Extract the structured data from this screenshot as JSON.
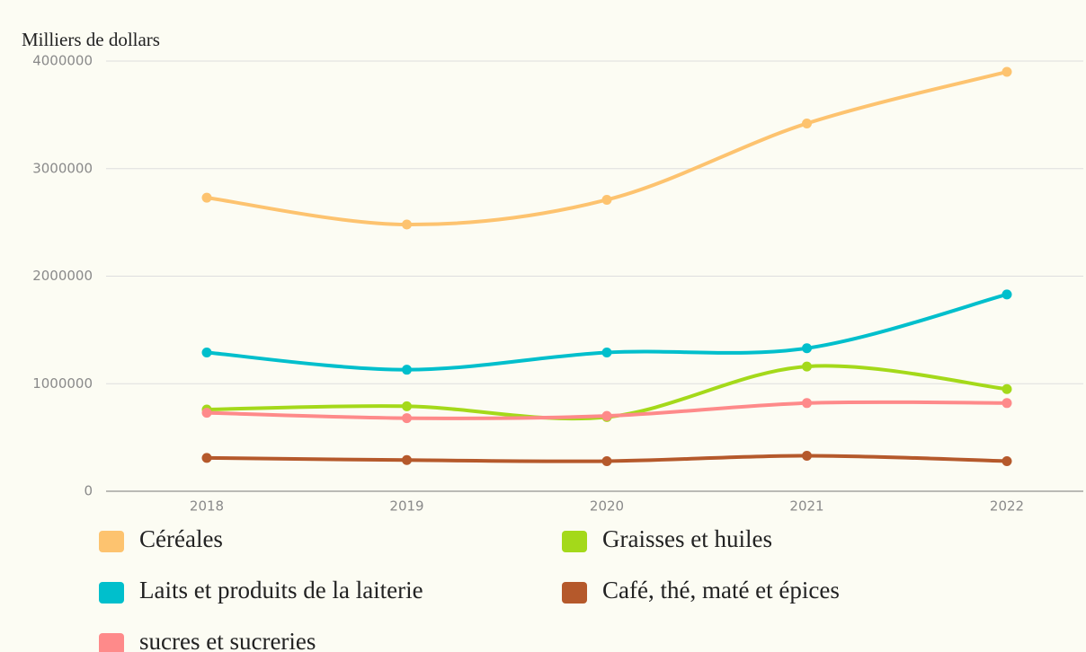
{
  "chart_data": {
    "type": "line",
    "y_axis_label": "Milliers de dollars",
    "categories": [
      "2018",
      "2019",
      "2020",
      "2021",
      "2022"
    ],
    "series": [
      {
        "name": "Céréales",
        "color": "#fdc36f",
        "values": [
          2730000,
          2480000,
          2710000,
          3420000,
          3900000
        ]
      },
      {
        "name": "Graisses et huiles",
        "color": "#a4d91a",
        "values": [
          760000,
          790000,
          690000,
          1160000,
          950000
        ]
      },
      {
        "name": "Laits et produits de la laiterie",
        "color": "#00bfcc",
        "values": [
          1290000,
          1130000,
          1290000,
          1330000,
          1830000
        ]
      },
      {
        "name": "Café, thé, maté et épices",
        "color": "#b5592b",
        "values": [
          310000,
          290000,
          280000,
          330000,
          280000
        ]
      },
      {
        "name": "sucres et sucreries",
        "color": "#fe8a8a",
        "values": [
          730000,
          680000,
          700000,
          820000,
          820000
        ]
      }
    ],
    "ylim": [
      0,
      4000000
    ],
    "yticks": [
      0,
      1000000,
      2000000,
      3000000,
      4000000
    ],
    "grid": true,
    "smooth": true
  }
}
